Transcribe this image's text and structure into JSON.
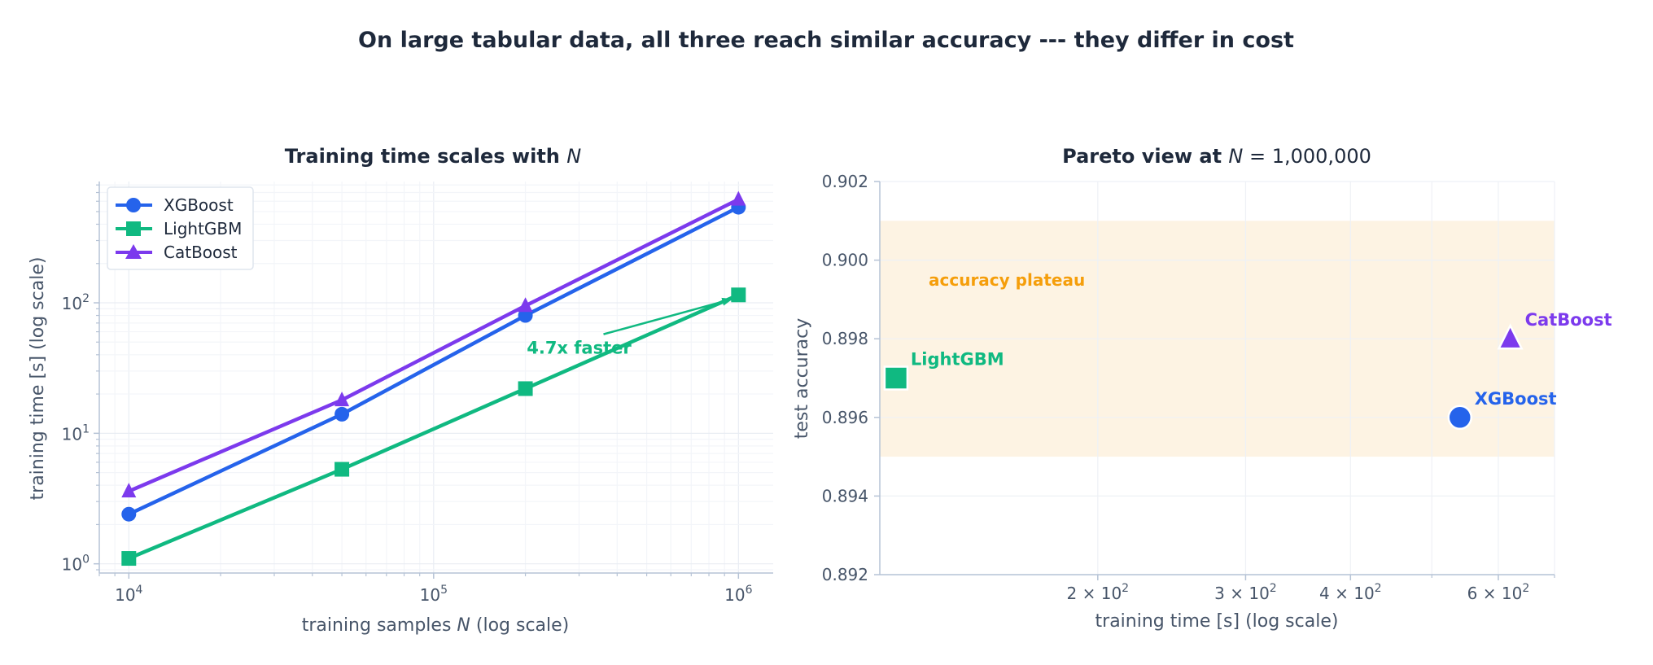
{
  "suptitle": "On large tabular data, all three reach similar accuracy --- they differ in cost",
  "colors": {
    "xgboost": "#2563eb",
    "lightgbm": "#10b981",
    "catboost": "#7c3aed",
    "plateau_fill": "#fdf3e3",
    "plateau_text": "#f59e0b",
    "axis": "#b6c3d6",
    "grid": "#eef2f7",
    "text": "#1e293b",
    "muted": "#475569"
  },
  "chart_data": [
    {
      "type": "line",
      "title_main": "Training time scales with ",
      "title_var": "N",
      "xlabel_pre": "training samples ",
      "xlabel_var": "N",
      "xlabel_post": "  (log scale)",
      "ylabel": "training time [s]  (log scale)",
      "xscale": "log",
      "yscale": "log",
      "xlim": [
        8000,
        1300000
      ],
      "ylim": [
        0.85,
        850
      ],
      "xticks": [
        {
          "base": "10",
          "exp": "4",
          "value": 10000
        },
        {
          "base": "10",
          "exp": "5",
          "value": 100000
        },
        {
          "base": "10",
          "exp": "6",
          "value": 1000000
        }
      ],
      "yticks": [
        {
          "base": "10",
          "exp": "0",
          "value": 1
        },
        {
          "base": "10",
          "exp": "1",
          "value": 10
        },
        {
          "base": "10",
          "exp": "2",
          "value": 100
        }
      ],
      "x": [
        10000,
        50000,
        200000,
        1000000
      ],
      "grid": true,
      "legend_position": "upper-left",
      "series": [
        {
          "name": "XGBoost",
          "key": "xgboost",
          "marker": "circle",
          "values": [
            2.4,
            14,
            80,
            540
          ]
        },
        {
          "name": "LightGBM",
          "key": "lightgbm",
          "marker": "square",
          "values": [
            1.1,
            5.3,
            22,
            115
          ]
        },
        {
          "name": "CatBoost",
          "key": "catboost",
          "marker": "triangle",
          "values": [
            3.6,
            18,
            95,
            620
          ]
        }
      ],
      "annotation": {
        "text": "4.7x faster",
        "text_x": 300000,
        "text_y": 45,
        "arrow_to_x": 1000000,
        "arrow_to_y": 115
      }
    },
    {
      "type": "scatter",
      "title_main": "Pareto view at ",
      "title_var": "N",
      "title_rest": " = 1,000,000",
      "xlabel": "training time [s]  (log scale)",
      "ylabel": "test accuracy",
      "xscale": "log",
      "xlim": [
        110,
        700
      ],
      "ylim": [
        0.892,
        0.902
      ],
      "xticks": [
        {
          "base": "2 × 10",
          "exp": "2",
          "value": 200
        },
        {
          "base": "3 × 10",
          "exp": "2",
          "value": 300
        },
        {
          "base": "4 × 10",
          "exp": "2",
          "value": 400
        },
        {
          "base": "6 × 10",
          "exp": "2",
          "value": 600
        }
      ],
      "yticks": [
        "0.892",
        "0.894",
        "0.896",
        "0.898",
        "0.900",
        "0.902"
      ],
      "grid": true,
      "band": {
        "label": "accuracy plateau",
        "y0": 0.895,
        "y1": 0.901
      },
      "points": [
        {
          "name": "XGBoost",
          "key": "xgboost",
          "marker": "circle",
          "x": 540,
          "y": 0.896
        },
        {
          "name": "LightGBM",
          "key": "lightgbm",
          "marker": "square",
          "x": 115,
          "y": 0.897
        },
        {
          "name": "CatBoost",
          "key": "catboost",
          "marker": "triangle",
          "x": 620,
          "y": 0.898
        }
      ]
    }
  ]
}
